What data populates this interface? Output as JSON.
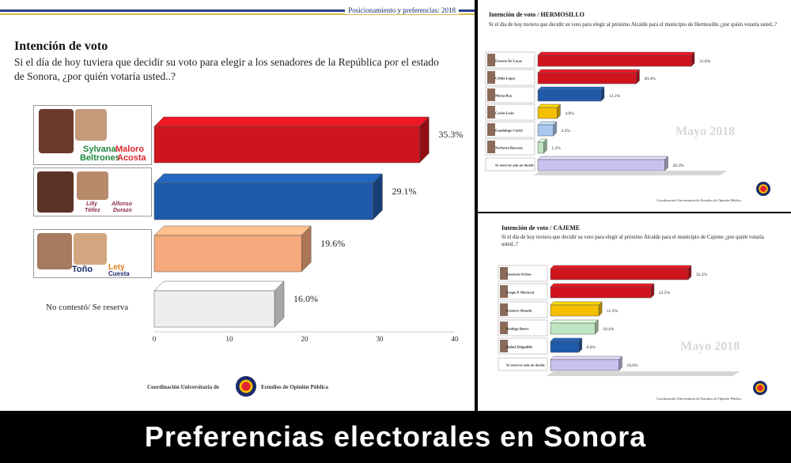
{
  "header": {
    "text": "Posicionamiento y preferencias: 2018"
  },
  "main": {
    "title": "Intención de voto",
    "question": "Si el día de hoy tuviera que decidir su voto para elegir a los senadores de la República por el estado de Sonora, ¿por quién votaría usted..?",
    "candidates": [
      {
        "name1": "Sylvana",
        "name2": "Maloro",
        "name3": "Beltrones",
        "name4": "Acosta"
      },
      {
        "name1": "Lilly",
        "name2": "Alfonso",
        "name3": "Téllez",
        "name4": "Durazo"
      },
      {
        "name1": "Toño",
        "name2": "Lety",
        "name3": "",
        "name4": "Cuesta"
      }
    ],
    "no_answer_label": "No contestó/ Se reserva",
    "footer_left": "Coordinación Universitaria de",
    "footer_right": "Estudios de Opinión Pública"
  },
  "hermosillo": {
    "title": "Intención de voto / HERMOSILLO",
    "question": "Si el día de hoy tuviera que decidir su voto para elegir al próximo Alcalde para el municipio de Hermosillo ¿por quién votaría usted..?",
    "watermark": "Mayo 2018",
    "footer": "Coordinación Universitaria de Estudios de Opinión Pública"
  },
  "cajeme": {
    "title": "Intención de voto / CAJEME",
    "question": "Si el día de hoy tuviera que decidir su voto para elegir al próximo Alcalde para el municipio de Cajeme ¿por quién votaría usted..?",
    "watermark": "Mayo 2018",
    "footer": "Coordinación Universitaria de Estudios de Opinión Pública"
  },
  "caption": "Preferencias electorales en Sonora",
  "colors": {
    "red": "#d0141e",
    "blue": "#1f5aa8",
    "peach": "#f5a97c",
    "grey": "#eeeeee",
    "yellow": "#f5c000",
    "lightblue": "#a9c8ef",
    "lightgreen": "#bfe5c0",
    "lavender": "#c7c2ef"
  },
  "chart_data": [
    {
      "type": "bar",
      "orientation": "horizontal",
      "categories": [
        "Sylvana Beltrones / Maloro Acosta",
        "Lilly Téllez / Alfonso Durazo",
        "Toño / Lety Cuesta",
        "No contestó/ Se reserva"
      ],
      "values": [
        35.3,
        29.1,
        19.6,
        16.0
      ],
      "value_labels": [
        "35.3%",
        "29.1%",
        "19.6%",
        "16.0%"
      ],
      "xlim": [
        0,
        40
      ],
      "ticks": [
        "0",
        "10",
        "20",
        "30",
        "40"
      ],
      "colors": [
        "#d0141e",
        "#1f5aa8",
        "#f5a97c",
        "#eeeeee"
      ]
    },
    {
      "type": "bar",
      "orientation": "horizontal",
      "categories": [
        "Ernesto De Lucas",
        "Célida López",
        "Mirna Rea",
        "Carlos León",
        "Guadalupe Curiel",
        "Norberto Barraza",
        "Se reserva/ aún no decide"
      ],
      "values": [
        31.8,
        20.4,
        13.1,
        4.0,
        3.2,
        1.2,
        26.3
      ],
      "value_labels": [
        "31.8%",
        "20.4%",
        "13.1%",
        "4.0%",
        "3.2%",
        "1.2%",
        "26.3%"
      ],
      "colors": [
        "#d0141e",
        "#d0141e",
        "#1f5aa8",
        "#f5c000",
        "#a9c8ef",
        "#bfe5c0",
        "#c7c2ef"
      ]
    },
    {
      "type": "bar",
      "orientation": "horizontal",
      "categories": [
        "Emeterio Ochoa",
        "Sergio P. Mariscal",
        "Gustavo Almada",
        "Rodrigo Bours",
        "Rafael Delgadillo",
        "Se reserva/ aún no decide"
      ],
      "values": [
        32.2,
        23.5,
        11.3,
        10.4,
        6.6,
        16.0
      ],
      "value_labels": [
        "32.2%",
        "23.5%",
        "11.3%",
        "10.4%",
        "6.6%",
        "16.0%"
      ],
      "colors": [
        "#d0141e",
        "#d0141e",
        "#f5c000",
        "#bfe5c0",
        "#1f5aa8",
        "#c7c2ef"
      ]
    }
  ]
}
